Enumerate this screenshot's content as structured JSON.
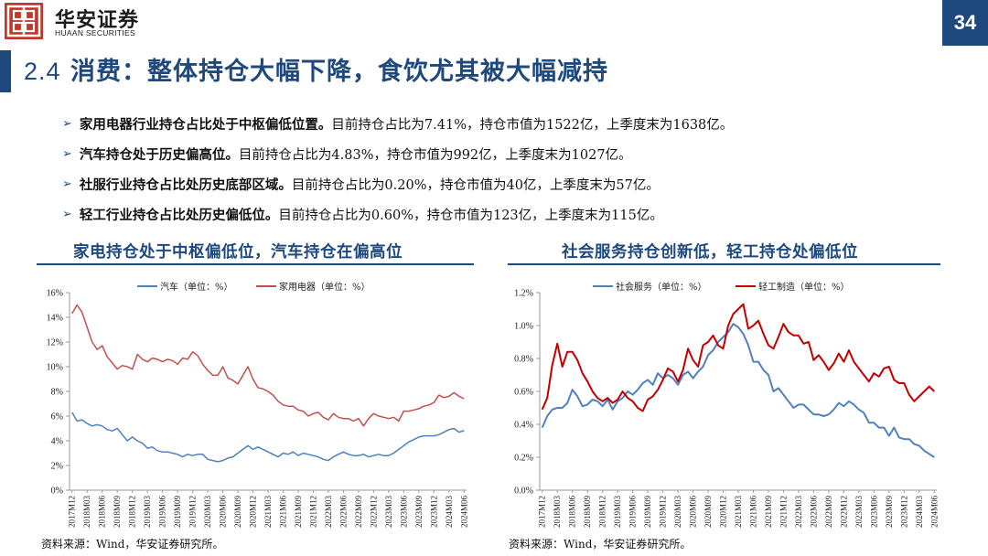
{
  "header": {
    "brand_cn": "华安证券",
    "brand_en": "HUAAN SECURITIES",
    "page_number": "34",
    "accent_color": "#1f497d",
    "logo_color": "#c0392b"
  },
  "title": {
    "number": "2.4",
    "text": "消费：整体持仓大幅下降，食饮尤其被大幅减持"
  },
  "bullets": [
    {
      "bold": "家用电器行业持仓占比处于中枢偏低位置。",
      "text": "目前持仓占比为7.41%，持仓市值为1522亿，上季度末为1638亿。"
    },
    {
      "bold": "汽车持仓处于历史偏高位。",
      "text": "目前持仓占比为4.83%，持仓市值为992亿，上季度末为1027亿。"
    },
    {
      "bold": "社服行业持仓占比处历史底部区域。",
      "text": "目前持仓占比为0.20%，持仓市值为40亿，上季度末为57亿。"
    },
    {
      "bold": "轻工行业持仓占比处历史偏低位。",
      "text": "目前持仓占比为0.60%，持仓市值为123亿，上季度末为115亿。"
    }
  ],
  "left_panel": {
    "title": "家电持仓处于中枢偏低位，汽车持仓在偏高位",
    "source": "资料来源：Wind，华安证券研究所。"
  },
  "right_panel": {
    "title": "社会服务持仓创新低，轻工持仓处偏低位",
    "source": "资料来源：Wind，华安证券研究所。"
  },
  "chart_data": [
    {
      "type": "line",
      "x": [
        "2017M12",
        "2018M01",
        "2018M02",
        "2018M03",
        "2018M04",
        "2018M05",
        "2018M06",
        "2018M07",
        "2018M08",
        "2018M09",
        "2018M10",
        "2018M11",
        "2018M12",
        "2019M01",
        "2019M02",
        "2019M03",
        "2019M04",
        "2019M05",
        "2019M06",
        "2019M07",
        "2019M08",
        "2019M09",
        "2019M10",
        "2019M11",
        "2019M12",
        "2020M01",
        "2020M02",
        "2020M03",
        "2020M04",
        "2020M05",
        "2020M06",
        "2020M07",
        "2020M08",
        "2020M09",
        "2020M10",
        "2020M11",
        "2020M12",
        "2021M01",
        "2021M02",
        "2021M03",
        "2021M04",
        "2021M05",
        "2021M06",
        "2021M07",
        "2021M08",
        "2021M09",
        "2021M10",
        "2021M11",
        "2021M12",
        "2022M01",
        "2022M02",
        "2022M03",
        "2022M04",
        "2022M05",
        "2022M06",
        "2022M07",
        "2022M08",
        "2022M09",
        "2022M10",
        "2022M11",
        "2022M12",
        "2023M01",
        "2023M02",
        "2023M03",
        "2023M04",
        "2023M05",
        "2023M06",
        "2023M07",
        "2023M08",
        "2023M09",
        "2023M10",
        "2023M11",
        "2023M12",
        "2024M01",
        "2024M02",
        "2024M03",
        "2024M04",
        "2024M05",
        "2024M06"
      ],
      "tick_labels": [
        "2017M12",
        "2018M03",
        "2018M06",
        "2018M09",
        "2018M12",
        "2019M03",
        "2019M06",
        "2019M09",
        "2019M12",
        "2020M03",
        "2020M06",
        "2020M09",
        "2020M12",
        "2021M03",
        "2021M06",
        "2021M09",
        "2021M12",
        "2022M03",
        "2022M06",
        "2022M09",
        "2022M12",
        "2023M03",
        "2023M06",
        "2023M09",
        "2023M12",
        "2024M03",
        "2024M06"
      ],
      "ylim": [
        0,
        16
      ],
      "yticks": [
        0,
        2,
        4,
        6,
        8,
        10,
        12,
        14,
        16
      ],
      "y_format": "percent0",
      "legend_position": "top",
      "grid": false,
      "series": [
        {
          "name": "汽车（单位：%）",
          "color": "#4f81bd",
          "values": [
            6.3,
            5.6,
            5.7,
            5.4,
            5.2,
            5.3,
            5.2,
            4.9,
            4.8,
            5.0,
            4.5,
            4.0,
            4.3,
            4.0,
            3.8,
            3.4,
            3.5,
            3.2,
            3.1,
            3.1,
            3.0,
            2.9,
            2.7,
            2.9,
            2.8,
            2.9,
            2.9,
            2.5,
            2.4,
            2.3,
            2.4,
            2.6,
            2.7,
            3.0,
            3.3,
            3.6,
            3.3,
            3.5,
            3.3,
            3.1,
            2.9,
            2.7,
            3.0,
            2.9,
            3.1,
            2.8,
            3.0,
            2.9,
            2.8,
            2.7,
            2.5,
            2.4,
            2.7,
            2.9,
            3.1,
            2.9,
            2.8,
            2.8,
            2.9,
            2.7,
            2.8,
            2.9,
            2.8,
            2.8,
            3.0,
            3.3,
            3.6,
            3.9,
            4.1,
            4.3,
            4.4,
            4.4,
            4.4,
            4.5,
            4.7,
            4.9,
            5.0,
            4.7,
            4.83
          ]
        },
        {
          "name": "家用电器（单位：%）",
          "color": "#c0504d",
          "values": [
            14.3,
            15.0,
            14.4,
            13.2,
            12.0,
            11.4,
            11.7,
            10.8,
            10.3,
            9.8,
            10.1,
            10.0,
            9.8,
            11.0,
            10.6,
            10.4,
            10.7,
            10.6,
            10.4,
            10.6,
            10.5,
            10.2,
            10.7,
            10.6,
            11.2,
            10.9,
            10.2,
            9.7,
            9.3,
            9.3,
            10.0,
            9.1,
            8.9,
            8.6,
            9.3,
            10.0,
            9.0,
            8.3,
            8.2,
            8.0,
            7.7,
            7.2,
            6.9,
            6.8,
            6.8,
            6.5,
            6.4,
            6.0,
            6.2,
            6.3,
            5.9,
            5.7,
            6.2,
            5.9,
            5.8,
            5.8,
            5.6,
            5.8,
            5.2,
            5.8,
            6.2,
            6.0,
            5.9,
            5.8,
            5.9,
            5.6,
            6.4,
            6.4,
            6.5,
            6.6,
            6.8,
            6.9,
            7.1,
            7.7,
            7.5,
            7.6,
            7.9,
            7.6,
            7.41
          ]
        }
      ]
    },
    {
      "type": "line",
      "x": [
        "2017M12",
        "2018M01",
        "2018M02",
        "2018M03",
        "2018M04",
        "2018M05",
        "2018M06",
        "2018M07",
        "2018M08",
        "2018M09",
        "2018M10",
        "2018M11",
        "2018M12",
        "2019M01",
        "2019M02",
        "2019M03",
        "2019M04",
        "2019M05",
        "2019M06",
        "2019M07",
        "2019M08",
        "2019M09",
        "2019M10",
        "2019M11",
        "2019M12",
        "2020M01",
        "2020M02",
        "2020M03",
        "2020M04",
        "2020M05",
        "2020M06",
        "2020M07",
        "2020M08",
        "2020M09",
        "2020M10",
        "2020M11",
        "2020M12",
        "2021M01",
        "2021M02",
        "2021M03",
        "2021M04",
        "2021M05",
        "2021M06",
        "2021M07",
        "2021M08",
        "2021M09",
        "2021M10",
        "2021M11",
        "2021M12",
        "2022M01",
        "2022M02",
        "2022M03",
        "2022M04",
        "2022M05",
        "2022M06",
        "2022M07",
        "2022M08",
        "2022M09",
        "2022M10",
        "2022M11",
        "2022M12",
        "2023M01",
        "2023M02",
        "2023M03",
        "2023M04",
        "2023M05",
        "2023M06",
        "2023M07",
        "2023M08",
        "2023M09",
        "2023M10",
        "2023M11",
        "2023M12",
        "2024M01",
        "2024M02",
        "2024M03",
        "2024M04",
        "2024M05",
        "2024M06"
      ],
      "tick_labels": [
        "2017M12",
        "2018M03",
        "2018M06",
        "2018M09",
        "2018M12",
        "2019M03",
        "2019M06",
        "2019M09",
        "2019M12",
        "2020M03",
        "2020M06",
        "2020M09",
        "2020M12",
        "2021M03",
        "2021M06",
        "2021M09",
        "2021M12",
        "2022M03",
        "2022M06",
        "2022M09",
        "2022M12",
        "2023M03",
        "2023M06",
        "2023M09",
        "2023M12",
        "2024M03",
        "2024M06"
      ],
      "ylim": [
        0,
        1.2
      ],
      "yticks": [
        0,
        0.2,
        0.4,
        0.6,
        0.8,
        1.0,
        1.2
      ],
      "y_format": "percent1",
      "legend_position": "top",
      "grid": false,
      "series": [
        {
          "name": "社会服务（单位：%）",
          "color": "#4f81bd",
          "values": [
            0.38,
            0.45,
            0.49,
            0.5,
            0.5,
            0.53,
            0.61,
            0.57,
            0.51,
            0.52,
            0.55,
            0.54,
            0.51,
            0.55,
            0.49,
            0.54,
            0.56,
            0.6,
            0.58,
            0.61,
            0.65,
            0.67,
            0.64,
            0.71,
            0.68,
            0.7,
            0.68,
            0.64,
            0.7,
            0.72,
            0.68,
            0.72,
            0.75,
            0.82,
            0.85,
            0.9,
            0.93,
            0.96,
            1.01,
            0.99,
            0.95,
            0.88,
            0.78,
            0.78,
            0.73,
            0.7,
            0.6,
            0.62,
            0.58,
            0.54,
            0.5,
            0.52,
            0.52,
            0.49,
            0.46,
            0.46,
            0.45,
            0.46,
            0.49,
            0.53,
            0.51,
            0.54,
            0.52,
            0.49,
            0.47,
            0.41,
            0.41,
            0.38,
            0.38,
            0.33,
            0.38,
            0.32,
            0.31,
            0.31,
            0.28,
            0.27,
            0.24,
            0.22,
            0.2
          ]
        },
        {
          "name": "轻工制造（单位：%）",
          "color": "#c00000",
          "values": [
            0.49,
            0.56,
            0.76,
            0.89,
            0.75,
            0.84,
            0.84,
            0.79,
            0.71,
            0.66,
            0.6,
            0.56,
            0.54,
            0.56,
            0.53,
            0.55,
            0.6,
            0.56,
            0.54,
            0.5,
            0.48,
            0.55,
            0.57,
            0.61,
            0.67,
            0.74,
            0.72,
            0.66,
            0.73,
            0.86,
            0.79,
            0.75,
            0.88,
            0.9,
            0.94,
            0.88,
            0.86,
            1.0,
            1.07,
            1.1,
            1.13,
            0.98,
            1.0,
            1.03,
            0.95,
            0.88,
            0.86,
            0.93,
            1.01,
            0.96,
            0.94,
            0.94,
            0.89,
            0.9,
            0.79,
            0.82,
            0.78,
            0.73,
            0.77,
            0.83,
            0.78,
            0.85,
            0.78,
            0.74,
            0.7,
            0.66,
            0.71,
            0.69,
            0.74,
            0.75,
            0.67,
            0.65,
            0.65,
            0.58,
            0.54,
            0.57,
            0.6,
            0.63,
            0.6
          ]
        }
      ]
    }
  ]
}
